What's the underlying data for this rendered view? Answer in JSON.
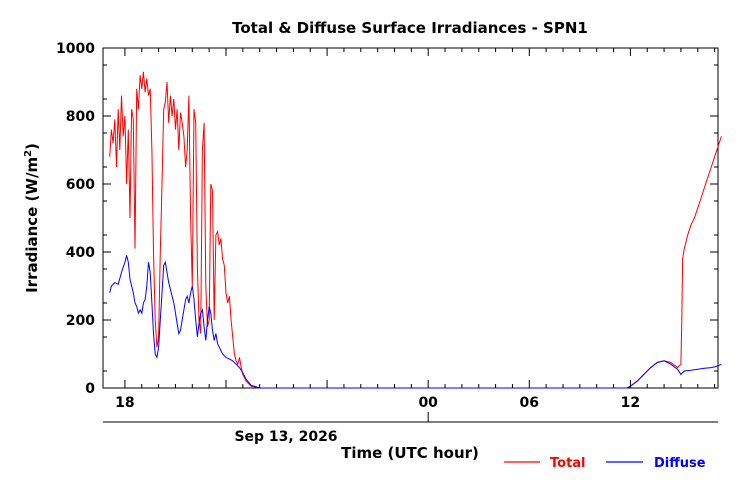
{
  "chart_data": {
    "type": "line",
    "title": "Total & Diffuse Surface Irradiances - SPN1",
    "xlabel": "Time (UTC hour)",
    "ylabel": "Irradiance (W/m",
    "ylabel_superscript": "2",
    "ylabel_close": ")",
    "date_label": "Sep 13, 2026",
    "x_units": "hours relative to 00 UTC Sep 13, 2026",
    "xlim": [
      -19.3,
      17.2
    ],
    "ylim": [
      0,
      1000
    ],
    "x_ticks": [
      -18,
      -12,
      -6,
      0,
      6,
      12
    ],
    "x_tick_labels": [
      "18",
      "",
      "",
      "00",
      "06",
      "12"
    ],
    "y_ticks": [
      0,
      200,
      400,
      600,
      800,
      1000
    ],
    "y_tick_labels": [
      "0",
      "200",
      "400",
      "600",
      "800",
      "1000"
    ],
    "grid": false,
    "legend_position": "bottom-right",
    "series": [
      {
        "name": "Total",
        "color": "#ff0000",
        "points": [
          [
            -18.9,
            680
          ],
          [
            -18.8,
            760
          ],
          [
            -18.7,
            720
          ],
          [
            -18.6,
            790
          ],
          [
            -18.5,
            650
          ],
          [
            -18.4,
            820
          ],
          [
            -18.3,
            700
          ],
          [
            -18.2,
            860
          ],
          [
            -18.1,
            740
          ],
          [
            -18.0,
            800
          ],
          [
            -17.9,
            600
          ],
          [
            -17.8,
            760
          ],
          [
            -17.7,
            500
          ],
          [
            -17.6,
            820
          ],
          [
            -17.5,
            790
          ],
          [
            -17.4,
            410
          ],
          [
            -17.3,
            880
          ],
          [
            -17.2,
            820
          ],
          [
            -17.1,
            920
          ],
          [
            -17.0,
            880
          ],
          [
            -16.9,
            930
          ],
          [
            -16.8,
            870
          ],
          [
            -16.7,
            910
          ],
          [
            -16.6,
            860
          ],
          [
            -16.5,
            880
          ],
          [
            -16.4,
            700
          ],
          [
            -16.3,
            400
          ],
          [
            -16.2,
            200
          ],
          [
            -16.1,
            120
          ],
          [
            -16.0,
            150
          ],
          [
            -15.9,
            400
          ],
          [
            -15.8,
            600
          ],
          [
            -15.7,
            820
          ],
          [
            -15.6,
            840
          ],
          [
            -15.5,
            900
          ],
          [
            -15.4,
            780
          ],
          [
            -15.3,
            860
          ],
          [
            -15.2,
            800
          ],
          [
            -15.1,
            850
          ],
          [
            -15.0,
            760
          ],
          [
            -14.9,
            820
          ],
          [
            -14.8,
            700
          ],
          [
            -14.7,
            810
          ],
          [
            -14.6,
            780
          ],
          [
            -14.5,
            740
          ],
          [
            -14.4,
            650
          ],
          [
            -14.3,
            700
          ],
          [
            -14.2,
            860
          ],
          [
            -14.1,
            500
          ],
          [
            -14.0,
            300
          ],
          [
            -13.9,
            820
          ],
          [
            -13.8,
            780
          ],
          [
            -13.7,
            350
          ],
          [
            -13.6,
            200
          ],
          [
            -13.5,
            160
          ],
          [
            -13.4,
            700
          ],
          [
            -13.3,
            780
          ],
          [
            -13.2,
            300
          ],
          [
            -13.1,
            180
          ],
          [
            -13.0,
            200
          ],
          [
            -12.9,
            600
          ],
          [
            -12.8,
            580
          ],
          [
            -12.7,
            200
          ],
          [
            -12.6,
            450
          ],
          [
            -12.5,
            460
          ],
          [
            -12.4,
            420
          ],
          [
            -12.3,
            440
          ],
          [
            -12.2,
            380
          ],
          [
            -12.1,
            360
          ],
          [
            -12.0,
            280
          ],
          [
            -11.9,
            250
          ],
          [
            -11.8,
            270
          ],
          [
            -11.7,
            200
          ],
          [
            -11.6,
            150
          ],
          [
            -11.5,
            100
          ],
          [
            -11.4,
            80
          ],
          [
            -11.3,
            70
          ],
          [
            -11.2,
            90
          ],
          [
            -11.1,
            60
          ],
          [
            -11.0,
            40
          ],
          [
            -10.8,
            20
          ],
          [
            -10.5,
            5
          ],
          [
            -10.0,
            0
          ],
          [
            -6,
            0
          ],
          [
            0,
            0
          ],
          [
            6,
            0
          ],
          [
            11.8,
            0
          ],
          [
            12.0,
            5
          ],
          [
            12.4,
            20
          ],
          [
            12.8,
            40
          ],
          [
            13.2,
            60
          ],
          [
            13.6,
            75
          ],
          [
            14.0,
            80
          ],
          [
            14.4,
            75
          ],
          [
            14.8,
            60
          ],
          [
            15.0,
            70
          ],
          [
            15.05,
            200
          ],
          [
            15.1,
            380
          ],
          [
            15.2,
            410
          ],
          [
            15.4,
            450
          ],
          [
            15.6,
            480
          ],
          [
            15.8,
            500
          ],
          [
            16.0,
            530
          ],
          [
            16.2,
            560
          ],
          [
            16.4,
            590
          ],
          [
            16.6,
            620
          ],
          [
            16.8,
            650
          ],
          [
            17.0,
            680
          ],
          [
            17.2,
            710
          ],
          [
            17.4,
            740
          ]
        ]
      },
      {
        "name": "Diffuse",
        "color": "#0000ff",
        "points": [
          [
            -18.9,
            280
          ],
          [
            -18.8,
            300
          ],
          [
            -18.6,
            310
          ],
          [
            -18.4,
            305
          ],
          [
            -18.2,
            340
          ],
          [
            -18.0,
            370
          ],
          [
            -17.9,
            390
          ],
          [
            -17.8,
            370
          ],
          [
            -17.7,
            320
          ],
          [
            -17.6,
            300
          ],
          [
            -17.5,
            280
          ],
          [
            -17.4,
            250
          ],
          [
            -17.3,
            240
          ],
          [
            -17.2,
            220
          ],
          [
            -17.1,
            230
          ],
          [
            -17.0,
            220
          ],
          [
            -16.9,
            250
          ],
          [
            -16.8,
            260
          ],
          [
            -16.7,
            300
          ],
          [
            -16.6,
            370
          ],
          [
            -16.5,
            340
          ],
          [
            -16.4,
            250
          ],
          [
            -16.3,
            160
          ],
          [
            -16.2,
            100
          ],
          [
            -16.1,
            90
          ],
          [
            -16.0,
            120
          ],
          [
            -15.9,
            200
          ],
          [
            -15.8,
            280
          ],
          [
            -15.7,
            360
          ],
          [
            -15.6,
            370
          ],
          [
            -15.5,
            340
          ],
          [
            -15.4,
            310
          ],
          [
            -15.3,
            290
          ],
          [
            -15.2,
            270
          ],
          [
            -15.1,
            250
          ],
          [
            -15.0,
            220
          ],
          [
            -14.9,
            190
          ],
          [
            -14.8,
            160
          ],
          [
            -14.7,
            170
          ],
          [
            -14.6,
            200
          ],
          [
            -14.5,
            230
          ],
          [
            -14.4,
            260
          ],
          [
            -14.3,
            270
          ],
          [
            -14.2,
            250
          ],
          [
            -14.1,
            280
          ],
          [
            -14.0,
            300
          ],
          [
            -13.9,
            260
          ],
          [
            -13.8,
            200
          ],
          [
            -13.7,
            150
          ],
          [
            -13.6,
            190
          ],
          [
            -13.5,
            220
          ],
          [
            -13.4,
            230
          ],
          [
            -13.3,
            180
          ],
          [
            -13.2,
            140
          ],
          [
            -13.1,
            200
          ],
          [
            -13.0,
            240
          ],
          [
            -12.9,
            220
          ],
          [
            -12.8,
            170
          ],
          [
            -12.7,
            140
          ],
          [
            -12.6,
            160
          ],
          [
            -12.5,
            130
          ],
          [
            -12.4,
            120
          ],
          [
            -12.3,
            110
          ],
          [
            -12.2,
            100
          ],
          [
            -12.1,
            95
          ],
          [
            -12.0,
            90
          ],
          [
            -11.8,
            85
          ],
          [
            -11.6,
            80
          ],
          [
            -11.4,
            70
          ],
          [
            -11.2,
            60
          ],
          [
            -11.0,
            45
          ],
          [
            -10.8,
            25
          ],
          [
            -10.5,
            8
          ],
          [
            -10.0,
            0
          ],
          [
            -6,
            0
          ],
          [
            0,
            0
          ],
          [
            6,
            0
          ],
          [
            11.8,
            0
          ],
          [
            12.0,
            5
          ],
          [
            12.4,
            20
          ],
          [
            12.8,
            40
          ],
          [
            13.2,
            60
          ],
          [
            13.6,
            75
          ],
          [
            14.0,
            80
          ],
          [
            14.4,
            70
          ],
          [
            14.8,
            55
          ],
          [
            15.0,
            40
          ],
          [
            15.2,
            50
          ],
          [
            15.6,
            52
          ],
          [
            16.0,
            55
          ],
          [
            16.4,
            58
          ],
          [
            16.8,
            60
          ],
          [
            17.0,
            62
          ],
          [
            17.2,
            65
          ],
          [
            17.4,
            70
          ]
        ]
      }
    ]
  }
}
